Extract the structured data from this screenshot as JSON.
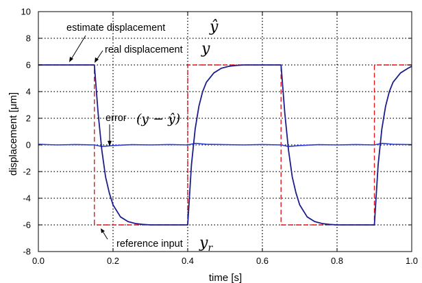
{
  "chart_data": {
    "type": "line",
    "title": "",
    "xlabel": "time [s]",
    "ylabel": "displacement [μm]",
    "xlim": [
      0.0,
      1.0
    ],
    "ylim": [
      -8,
      10
    ],
    "x_ticks": [
      0.0,
      0.2,
      0.4,
      0.6,
      0.8,
      1.0
    ],
    "x_tick_labels": [
      "0.0",
      "0.2",
      "0.4",
      "0.6",
      "0.8",
      "1.0"
    ],
    "y_ticks": [
      -8,
      -6,
      -4,
      -2,
      0,
      2,
      4,
      6,
      8,
      10
    ],
    "y_tick_labels": [
      "-8",
      "-6",
      "-4",
      "-2",
      "0",
      "2",
      "4",
      "6",
      "8",
      "10"
    ],
    "grid": true,
    "series": [
      {
        "key": "reference",
        "color": "#e8141c",
        "style": "dashed",
        "x": [
          0.0,
          0.15,
          0.15,
          0.4,
          0.4,
          0.65,
          0.65,
          0.9,
          0.9,
          1.0
        ],
        "y": [
          6,
          6,
          -6,
          -6,
          6,
          6,
          -6,
          -6,
          6,
          6
        ]
      },
      {
        "key": "displacement",
        "color": "#1c1c8a",
        "style": "solid",
        "x": [
          0.0,
          0.15,
          0.16,
          0.17,
          0.18,
          0.19,
          0.2,
          0.22,
          0.24,
          0.26,
          0.28,
          0.3,
          0.35,
          0.4,
          0.41,
          0.42,
          0.43,
          0.44,
          0.45,
          0.47,
          0.49,
          0.51,
          0.53,
          0.55,
          0.6,
          0.65,
          0.66,
          0.67,
          0.68,
          0.69,
          0.7,
          0.72,
          0.74,
          0.76,
          0.78,
          0.8,
          0.85,
          0.9,
          0.91,
          0.92,
          0.93,
          0.94,
          0.95,
          0.97,
          0.99,
          1.0
        ],
        "y": [
          6.0,
          6.0,
          2.4,
          -0.4,
          -2.4,
          -3.6,
          -4.5,
          -5.4,
          -5.75,
          -5.9,
          -5.96,
          -6.0,
          -6.0,
          -6.0,
          -1.5,
          1.2,
          2.9,
          4.0,
          4.7,
          5.4,
          5.75,
          5.9,
          5.96,
          6.0,
          6.0,
          6.0,
          2.4,
          -0.4,
          -2.4,
          -3.6,
          -4.5,
          -5.4,
          -5.75,
          -5.9,
          -5.96,
          -6.0,
          -6.0,
          -6.0,
          -1.5,
          1.2,
          2.9,
          4.0,
          4.7,
          5.4,
          5.75,
          5.9
        ]
      },
      {
        "key": "error",
        "color": "#2b3bd6",
        "style": "solid",
        "x": [
          0.0,
          0.05,
          0.1,
          0.15,
          0.17,
          0.2,
          0.25,
          0.3,
          0.35,
          0.4,
          0.42,
          0.45,
          0.5,
          0.55,
          0.6,
          0.65,
          0.67,
          0.7,
          0.75,
          0.8,
          0.85,
          0.9,
          0.92,
          0.95,
          1.0
        ],
        "y": [
          0.05,
          0.0,
          0.03,
          0.0,
          -0.12,
          -0.05,
          0.02,
          0.0,
          0.03,
          0.0,
          0.12,
          0.05,
          0.02,
          0.0,
          0.03,
          0.0,
          -0.12,
          -0.05,
          0.02,
          0.0,
          0.03,
          0.0,
          0.12,
          0.05,
          0.02
        ]
      }
    ],
    "annotations": [
      {
        "key": "estimate",
        "text": "estimate displacement",
        "math": "ŷ"
      },
      {
        "key": "real",
        "text": "real displacement",
        "math": "y"
      },
      {
        "key": "error",
        "text": "error",
        "math": "(y − ŷ)"
      },
      {
        "key": "reference",
        "text": "reference input",
        "math": "y",
        "math_sub": "r"
      }
    ]
  }
}
